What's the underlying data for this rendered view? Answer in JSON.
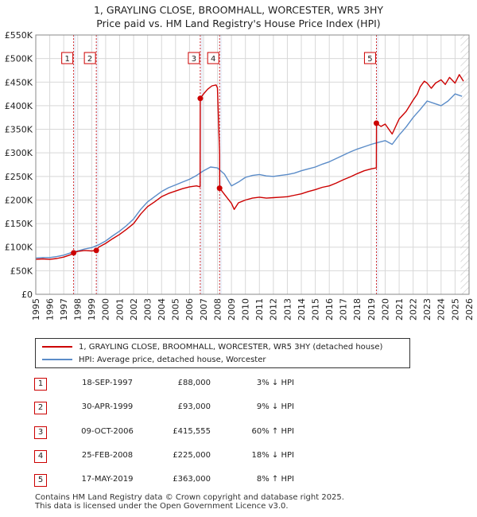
{
  "chart_data": {
    "type": "line",
    "title": "1, GRAYLING CLOSE, BROOMHALL, WORCESTER, WR5 3HY",
    "subtitle": "Price paid vs. HM Land Registry's House Price Index (HPI)",
    "xlim": [
      1995,
      2026
    ],
    "ylim": [
      0,
      550000
    ],
    "x_ticks": [
      1995,
      1996,
      1997,
      1998,
      1999,
      2000,
      2001,
      2002,
      2003,
      2004,
      2005,
      2006,
      2007,
      2008,
      2009,
      2010,
      2011,
      2012,
      2013,
      2014,
      2015,
      2016,
      2017,
      2018,
      2019,
      2020,
      2021,
      2022,
      2023,
      2024,
      2025,
      2026
    ],
    "y_ticks": [
      {
        "value": 0,
        "label": "£0"
      },
      {
        "value": 50000,
        "label": "£50K"
      },
      {
        "value": 100000,
        "label": "£100K"
      },
      {
        "value": 150000,
        "label": "£150K"
      },
      {
        "value": 200000,
        "label": "£200K"
      },
      {
        "value": 250000,
        "label": "£250K"
      },
      {
        "value": 300000,
        "label": "£300K"
      },
      {
        "value": 350000,
        "label": "£350K"
      },
      {
        "value": 400000,
        "label": "£400K"
      },
      {
        "value": 450000,
        "label": "£450K"
      },
      {
        "value": 500000,
        "label": "£500K"
      },
      {
        "value": 550000,
        "label": "£550K"
      }
    ],
    "series": [
      {
        "name": "1, GRAYLING CLOSE, BROOMHALL, WORCESTER, WR5 3HY (detached house)",
        "color": "#cc0000",
        "x": [
          1995.0,
          1995.5,
          1996.0,
          1996.5,
          1997.0,
          1997.5,
          1997.71,
          1998.0,
          1998.5,
          1999.0,
          1999.33,
          1999.5,
          2000.0,
          2000.5,
          2001.0,
          2001.5,
          2002.0,
          2002.5,
          2003.0,
          2003.5,
          2004.0,
          2004.5,
          2005.0,
          2005.5,
          2006.0,
          2006.5,
          2006.76,
          2006.77,
          2007.0,
          2007.3,
          2007.6,
          2007.9,
          2008.0,
          2008.15,
          2008.16,
          2008.5,
          2009.0,
          2009.2,
          2009.5,
          2010.0,
          2010.5,
          2011.0,
          2011.5,
          2012.0,
          2012.5,
          2013.0,
          2013.5,
          2014.0,
          2014.5,
          2015.0,
          2015.5,
          2016.0,
          2016.5,
          2017.0,
          2017.5,
          2018.0,
          2018.5,
          2019.0,
          2019.37,
          2019.38,
          2019.7,
          2020.0,
          2020.5,
          2021.0,
          2021.5,
          2022.0,
          2022.3,
          2022.5,
          2022.8,
          2023.0,
          2023.3,
          2023.6,
          2024.0,
          2024.3,
          2024.6,
          2025.0,
          2025.3,
          2025.6
        ],
        "y": [
          74000,
          75000,
          74000,
          76000,
          79000,
          84000,
          88000,
          91000,
          93000,
          92000,
          93000,
          100000,
          108000,
          118000,
          127000,
          138000,
          150000,
          170000,
          186000,
          196000,
          207000,
          214000,
          219000,
          224000,
          228000,
          230000,
          228000,
          415555,
          425000,
          435000,
          442000,
          444000,
          438000,
          300000,
          225000,
          212000,
          193000,
          180000,
          194000,
          200000,
          204000,
          206000,
          204000,
          205000,
          206000,
          207000,
          210000,
          213000,
          218000,
          222000,
          227000,
          230000,
          236000,
          243000,
          249000,
          256000,
          262000,
          266000,
          268000,
          363000,
          356000,
          361000,
          340000,
          372000,
          388000,
          412000,
          425000,
          440000,
          452000,
          448000,
          437000,
          448000,
          455000,
          445000,
          460000,
          448000,
          466000,
          452000
        ]
      },
      {
        "name": "HPI: Average price, detached house, Worcester",
        "color": "#5b8cc8",
        "x": [
          1995.0,
          1995.5,
          1996.0,
          1996.5,
          1997.0,
          1997.5,
          1998.0,
          1998.5,
          1999.0,
          1999.5,
          2000.0,
          2000.5,
          2001.0,
          2001.5,
          2002.0,
          2002.5,
          2003.0,
          2003.5,
          2004.0,
          2004.5,
          2005.0,
          2005.5,
          2006.0,
          2006.5,
          2007.0,
          2007.5,
          2008.0,
          2008.5,
          2009.0,
          2009.5,
          2010.0,
          2010.5,
          2011.0,
          2011.5,
          2012.0,
          2012.5,
          2013.0,
          2013.5,
          2014.0,
          2014.5,
          2015.0,
          2015.5,
          2016.0,
          2016.5,
          2017.0,
          2017.5,
          2018.0,
          2018.5,
          2019.0,
          2019.5,
          2020.0,
          2020.5,
          2021.0,
          2021.5,
          2022.0,
          2022.5,
          2023.0,
          2023.5,
          2024.0,
          2024.5,
          2025.0,
          2025.5
        ],
        "y": [
          77000,
          78000,
          78000,
          80000,
          83000,
          88000,
          92000,
          96000,
          99000,
          105000,
          113000,
          124000,
          134000,
          146000,
          160000,
          180000,
          196000,
          207000,
          218000,
          226000,
          232000,
          238000,
          244000,
          252000,
          262000,
          270000,
          268000,
          255000,
          230000,
          238000,
          248000,
          252000,
          254000,
          251000,
          250000,
          252000,
          254000,
          257000,
          262000,
          266000,
          270000,
          276000,
          281000,
          288000,
          295000,
          302000,
          308000,
          313000,
          318000,
          322000,
          326000,
          318000,
          338000,
          355000,
          375000,
          392000,
          410000,
          405000,
          400000,
          410000,
          425000,
          420000
        ]
      }
    ],
    "transactions": [
      {
        "n": "1",
        "x": 1997.71,
        "y": 88000
      },
      {
        "n": "2",
        "x": 1999.33,
        "y": 93000
      },
      {
        "n": "3",
        "x": 2006.77,
        "y": 415555
      },
      {
        "n": "4",
        "x": 2008.15,
        "y": 225000
      },
      {
        "n": "5",
        "x": 2019.37,
        "y": 363000
      }
    ]
  },
  "legend": {
    "red": "1, GRAYLING CLOSE, BROOMHALL, WORCESTER, WR5 3HY (detached house)",
    "blue": "HPI: Average price, detached house, Worcester"
  },
  "table": [
    {
      "n": "1",
      "date": "18-SEP-1997",
      "price": "£88,000",
      "hpi": "3% ↓ HPI"
    },
    {
      "n": "2",
      "date": "30-APR-1999",
      "price": "£93,000",
      "hpi": "9% ↓ HPI"
    },
    {
      "n": "3",
      "date": "09-OCT-2006",
      "price": "£415,555",
      "hpi": "60% ↑ HPI"
    },
    {
      "n": "4",
      "date": "25-FEB-2008",
      "price": "£225,000",
      "hpi": "18% ↓ HPI"
    },
    {
      "n": "5",
      "date": "17-MAY-2019",
      "price": "£363,000",
      "hpi": "8% ↑ HPI"
    }
  ],
  "footer": {
    "line1": "Contains HM Land Registry data © Crown copyright and database right 2025.",
    "line2": "This data is licensed under the Open Government Licence v3.0."
  }
}
